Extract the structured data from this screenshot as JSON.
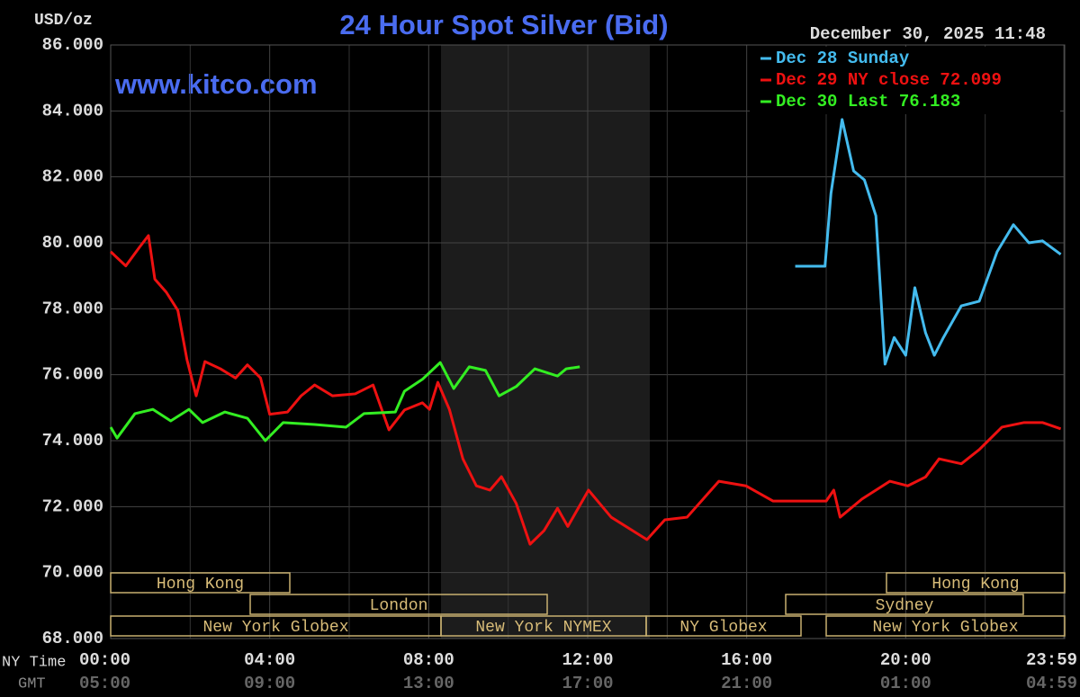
{
  "chart_data": {
    "type": "line",
    "title": "24 Hour Spot Silver (Bid)",
    "y_label": "USD/oz",
    "timestamp": "December 30, 2025 11:48",
    "watermark": "www.kitco.com",
    "x_row_label": "NY Time",
    "x2_row_label": "GMT",
    "xlim": [
      0,
      24
    ],
    "xticks": [
      {
        "value": 0,
        "label": "00:00"
      },
      {
        "value": 4,
        "label": "04:00"
      },
      {
        "value": 8,
        "label": "08:00"
      },
      {
        "value": 12,
        "label": "12:00"
      },
      {
        "value": 16,
        "label": "16:00"
      },
      {
        "value": 20,
        "label": "20:00"
      },
      {
        "value": 23.98,
        "label": "23:59"
      }
    ],
    "x2_labels": [
      "05:00",
      "09:00",
      "13:00",
      "17:00",
      "21:00",
      "01:00",
      "04:59"
    ],
    "ylim": [
      68,
      86
    ],
    "yticks": [
      {
        "value": 68,
        "label": "68.000"
      },
      {
        "value": 70,
        "label": "70.000"
      },
      {
        "value": 72,
        "label": "72.000"
      },
      {
        "value": 74,
        "label": "74.000"
      },
      {
        "value": 76,
        "label": "76.000"
      },
      {
        "value": 78,
        "label": "78.000"
      },
      {
        "value": 80,
        "label": "80.000"
      },
      {
        "value": 82,
        "label": "82.000"
      },
      {
        "value": 84,
        "label": "84.000"
      },
      {
        "value": 86,
        "label": "86.000"
      }
    ],
    "grid": true,
    "sessions": [
      "Hong Kong",
      "Hong Kong",
      "London",
      "Sydney",
      "New York Globex",
      "New York NYMEX",
      "NY Globex",
      "New York Globex"
    ],
    "series": [
      {
        "name": "Dec 28 Sunday",
        "color": "#44bbee",
        "x": [
          17.22,
          17.97,
          18.12,
          18.4,
          18.69,
          18.96,
          19.25,
          19.48,
          19.71,
          20.0,
          20.23,
          20.5,
          20.72,
          20.95,
          21.4,
          21.85,
          22.3,
          22.71,
          23.1,
          23.44,
          23.9
        ],
        "values": [
          79.29,
          79.29,
          81.5,
          83.74,
          82.18,
          81.91,
          80.82,
          76.32,
          77.13,
          76.59,
          78.64,
          77.27,
          76.59,
          77.13,
          78.09,
          78.23,
          79.73,
          80.55,
          80.0,
          80.06,
          79.65
        ]
      },
      {
        "name": "Dec 29 NY close 72.099",
        "color": "#ee1111",
        "x": [
          0,
          0.38,
          0.72,
          0.95,
          1.11,
          1.4,
          1.69,
          1.92,
          2.15,
          2.37,
          2.76,
          3.14,
          3.44,
          3.77,
          4.0,
          4.45,
          4.79,
          5.13,
          5.58,
          6.15,
          6.6,
          7.0,
          7.39,
          7.84,
          8.02,
          8.23,
          8.52,
          8.86,
          9.2,
          9.54,
          9.83,
          10.2,
          10.55,
          10.9,
          11.24,
          11.5,
          12.02,
          12.59,
          13.49,
          13.94,
          14.5,
          15.3,
          15.98,
          16.66,
          17.56,
          18.0,
          18.19,
          18.35,
          18.9,
          19.6,
          20.05,
          20.5,
          20.84,
          21.4,
          21.85,
          22.42,
          22.98,
          23.44,
          23.9
        ],
        "values": [
          79.73,
          79.3,
          79.86,
          80.22,
          78.9,
          78.5,
          77.95,
          76.45,
          75.36,
          76.4,
          76.18,
          75.9,
          76.3,
          75.9,
          74.8,
          74.87,
          75.36,
          75.69,
          75.36,
          75.42,
          75.69,
          74.33,
          74.93,
          75.15,
          74.95,
          75.77,
          74.95,
          73.45,
          72.63,
          72.5,
          72.91,
          72.1,
          70.86,
          71.27,
          71.95,
          71.4,
          72.5,
          71.68,
          71.0,
          71.6,
          71.68,
          72.77,
          72.63,
          72.17,
          72.17,
          72.17,
          72.5,
          71.68,
          72.23,
          72.77,
          72.63,
          72.9,
          73.45,
          73.3,
          73.73,
          74.41,
          74.55,
          74.55,
          74.36
        ]
      },
      {
        "name": "Dec 30 Last 76.183",
        "color": "#33ee22",
        "x": [
          0,
          0.16,
          0.61,
          1.06,
          1.51,
          1.97,
          2.31,
          2.87,
          3.44,
          3.89,
          4.34,
          5.13,
          5.92,
          6.37,
          7.16,
          7.39,
          7.84,
          8.29,
          8.63,
          9.02,
          9.43,
          9.77,
          10.2,
          10.67,
          11.24,
          11.46,
          11.8
        ],
        "values": [
          74.41,
          74.08,
          74.82,
          74.95,
          74.6,
          74.95,
          74.55,
          74.87,
          74.68,
          74.0,
          74.55,
          74.49,
          74.41,
          74.82,
          74.87,
          75.5,
          75.86,
          76.37,
          75.58,
          76.24,
          76.13,
          75.36,
          75.64,
          76.18,
          75.96,
          76.18,
          76.24
        ]
      }
    ]
  }
}
